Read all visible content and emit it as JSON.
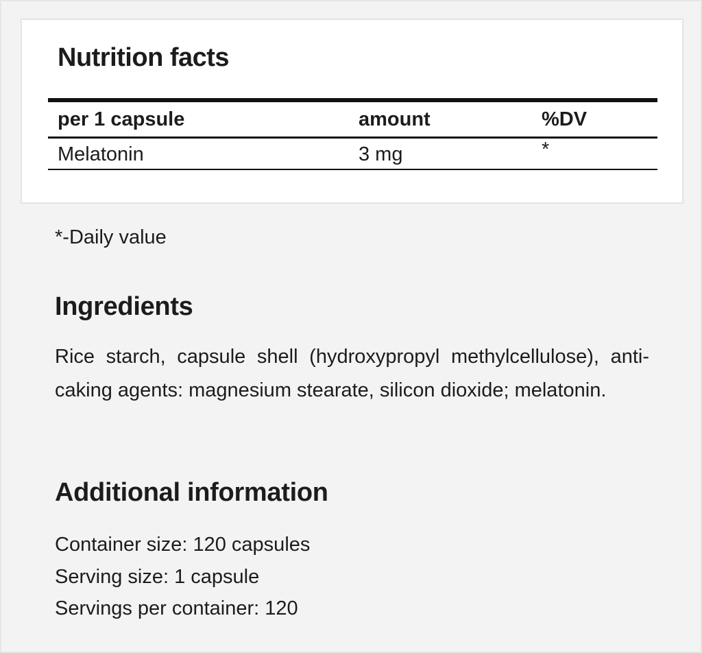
{
  "nutrition": {
    "title": "Nutrition facts",
    "headers": [
      "per 1 capsule",
      "amount",
      "%DV"
    ],
    "rows": [
      [
        "Melatonin",
        "3 mg",
        "*"
      ]
    ]
  },
  "footnote": "*-Daily value",
  "ingredients": {
    "title": "Ingredients",
    "text": "Rice starch, capsule shell (hydroxypropyl methylcellulose), anti-caking agents: magnesium stearate, silicon dioxide; melatonin."
  },
  "additional": {
    "title": "Additional information",
    "lines": [
      "Container size: 120 capsules",
      "Serving size: 1 capsule",
      "Servings per container: 120"
    ]
  }
}
